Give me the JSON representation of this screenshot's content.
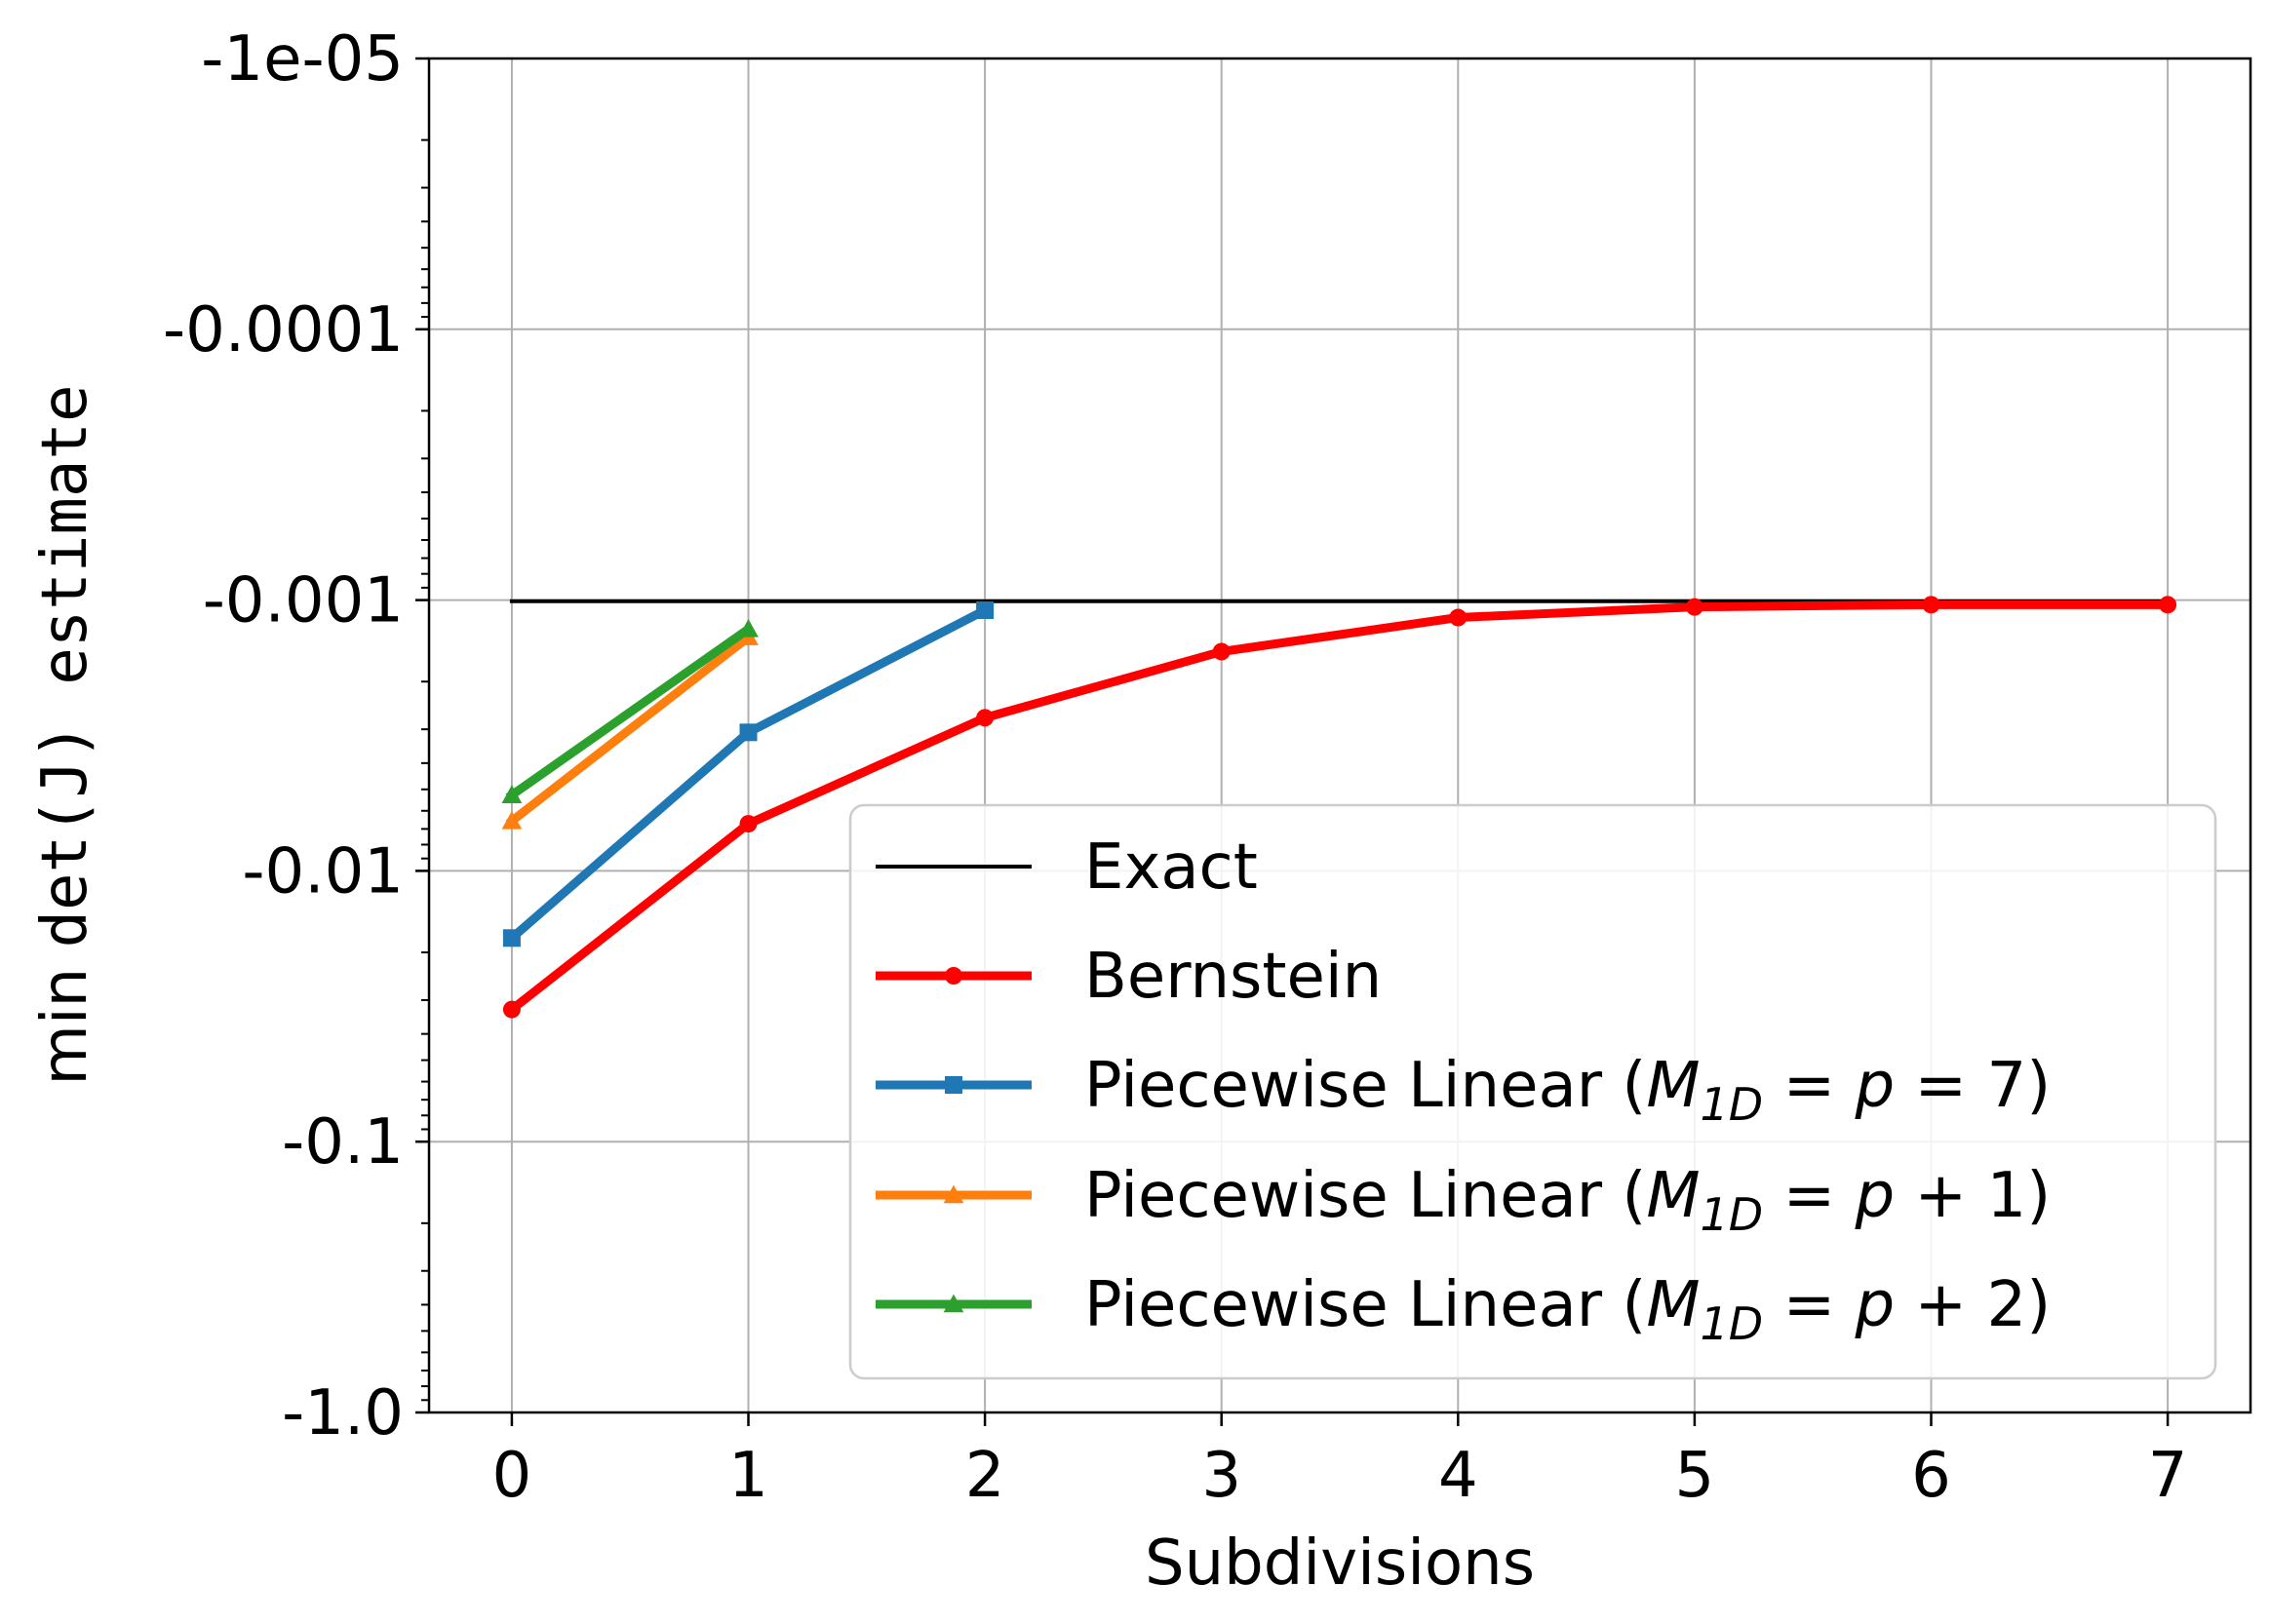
{
  "chart_data": {
    "type": "line",
    "title": "",
    "xlabel": "Subdivisions",
    "ylabel": {
      "prefix": "min",
      "mono": "det(J) estimate",
      "full": "min det(J) estimate"
    },
    "y_scale": "log (negative values)",
    "xlim": [
      -0.35,
      7.35
    ],
    "ylim": [
      -1e-05,
      -1.0
    ],
    "x_ticks": [
      0,
      1,
      2,
      3,
      4,
      5,
      6,
      7
    ],
    "x_tick_labels": [
      "0",
      "1",
      "2",
      "3",
      "4",
      "5",
      "6",
      "7"
    ],
    "y_ticks": [
      -1e-05,
      -0.0001,
      -0.001,
      -0.01,
      -0.1,
      -1.0
    ],
    "y_tick_labels": [
      "-1e-05",
      "-0.0001",
      "-0.001",
      "-0.01",
      "-0.1",
      "-1.0"
    ],
    "grid": true,
    "legend_position": "lower-right",
    "series": [
      {
        "name": "Exact",
        "legend": {
          "plain": "Exact"
        },
        "color": "#000000",
        "marker": "none",
        "x": [
          0,
          7
        ],
        "values": [
          -0.00101,
          -0.00101
        ]
      },
      {
        "name": "Bernstein",
        "legend": {
          "plain": "Bernstein"
        },
        "color": "#ff0000",
        "marker": "circle",
        "x": [
          0,
          1,
          2,
          3,
          4,
          5,
          6,
          7
        ],
        "values": [
          -0.0325,
          -0.0067,
          -0.00272,
          -0.00155,
          -0.00116,
          -0.00106,
          -0.00104,
          -0.00104
        ]
      },
      {
        "name": "Piecewise Linear (M_1D = p = 7)",
        "legend": {
          "plain": "Piecewise Linear (",
          "M": "M",
          "sub": "1D",
          "eq1": " = ",
          "p": "p",
          "rest": " = 7)"
        },
        "color": "#1f77b4",
        "marker": "square",
        "x": [
          0,
          1,
          2
        ],
        "values": [
          -0.0177,
          -0.00308,
          -0.00109
        ]
      },
      {
        "name": "Piecewise Linear (M_1D = p + 1)",
        "legend": {
          "plain": "Piecewise Linear (",
          "M": "M",
          "sub": "1D",
          "eq1": " = ",
          "p": "p",
          "rest": " + 1)"
        },
        "color": "#ff7f0e",
        "marker": "triangle",
        "x": [
          0,
          1
        ],
        "values": [
          -0.00655,
          -0.00137
        ]
      },
      {
        "name": "Piecewise Linear (M_1D = p + 2)",
        "legend": {
          "plain": "Piecewise Linear (",
          "M": "M",
          "sub": "1D",
          "eq1": " = ",
          "p": "p",
          "rest": " + 2)"
        },
        "color": "#2ca02c",
        "marker": "triangle",
        "x": [
          0,
          1
        ],
        "values": [
          -0.00525,
          -0.00128
        ]
      }
    ]
  }
}
